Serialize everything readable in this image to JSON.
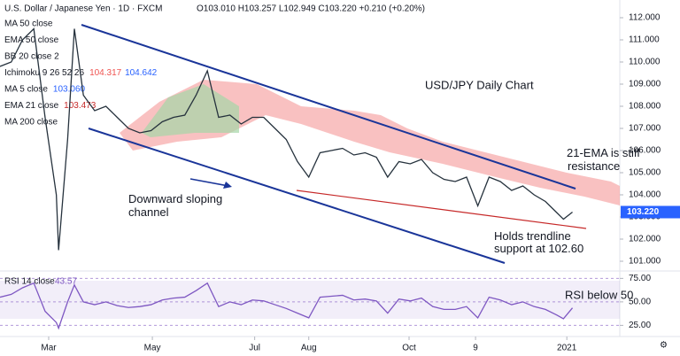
{
  "header": {
    "symbol": "U.S. Dollar / Japanese Yen · 1D · FXCM",
    "ohlc": "O103.010 H103.257 L102.949 C103.220 +0.210 (+0.20%)"
  },
  "indicators": [
    {
      "name": "MA 50 close"
    },
    {
      "name": "EMA 50 close"
    },
    {
      "name": "BB 20 close 2"
    },
    {
      "name": "Ichimoku 9 26 52 26",
      "values": [
        "104.317",
        "104.642"
      ]
    },
    {
      "name": "MA 5 close",
      "values": [
        "103.060"
      ]
    },
    {
      "name": "EMA 21 close",
      "values": [
        "103.473"
      ]
    },
    {
      "name": "MA 200 close"
    }
  ],
  "chart_data": [
    {
      "type": "line",
      "title": "USD/JPY Daily Chart",
      "annotations": [
        "21-EMA is stiff resistance",
        "Downward sloping channel",
        "Holds trendline support at 102.60"
      ],
      "x": [
        0,
        5,
        10,
        15,
        20,
        25,
        26,
        30,
        33,
        37,
        42,
        47,
        52,
        57,
        62,
        67,
        72,
        77,
        82,
        87,
        92,
        97,
        102,
        107,
        112,
        117,
        122,
        127,
        132,
        137,
        142,
        147,
        152,
        157,
        162,
        167,
        172,
        177,
        182,
        187,
        192,
        197,
        202,
        207,
        212,
        217,
        222,
        227,
        232,
        237,
        242,
        247,
        250,
        254
      ],
      "values": [
        109.8,
        110,
        111,
        111.5,
        107.5,
        104,
        101.5,
        106.5,
        111.5,
        108.5,
        107.8,
        108,
        107.5,
        107,
        106.8,
        106.9,
        107.3,
        107.5,
        107.6,
        108.5,
        109.6,
        107.5,
        107.6,
        107.2,
        107.5,
        107.5,
        107,
        106.5,
        105.5,
        104.8,
        105.9,
        106,
        106.1,
        105.8,
        105.9,
        105.7,
        104.8,
        105.5,
        105.4,
        105.6,
        105,
        104.7,
        104.6,
        104.8,
        103.5,
        104.8,
        104.6,
        104.2,
        104.4,
        104,
        103.7,
        103.2,
        102.9,
        103.22
      ],
      "color": "#26323d",
      "xlim": [
        0,
        275
      ],
      "ylim": [
        100.6,
        112.8
      ],
      "xticks": [
        {
          "value": 21.6,
          "label": "Mar"
        },
        {
          "value": 67.6,
          "label": "May"
        },
        {
          "value": 113,
          "label": "Jul"
        },
        {
          "value": 137,
          "label": "Aug"
        },
        {
          "value": 181.5,
          "label": "Oct"
        },
        {
          "value": 211,
          "label": "9"
        },
        {
          "value": 251.5,
          "label": "2021"
        }
      ],
      "yticks": [
        {
          "value": 101,
          "label": "101.000"
        },
        {
          "value": 102,
          "label": "102.000"
        },
        {
          "value": 103,
          "label": "103.000"
        },
        {
          "value": 104,
          "label": "104.000"
        },
        {
          "value": 105,
          "label": "105.000"
        },
        {
          "value": 106,
          "label": "106.000"
        },
        {
          "value": 107,
          "label": "107.000"
        },
        {
          "value": 108,
          "label": "108.000"
        },
        {
          "value": 109,
          "label": "109.000"
        },
        {
          "value": 110,
          "label": "110.000"
        },
        {
          "value": 111,
          "label": "111.000"
        },
        {
          "value": 112,
          "label": "112.000"
        }
      ],
      "last_price": {
        "value": 103.22,
        "label": "103.220"
      }
    },
    {
      "type": "line",
      "legend": "RSI 14 close",
      "legend_value": 43.57,
      "annotation": "RSI below 50",
      "x": [
        0,
        5,
        10,
        15,
        20,
        25,
        26,
        30,
        33,
        37,
        42,
        47,
        52,
        57,
        62,
        67,
        72,
        77,
        82,
        87,
        92,
        97,
        102,
        107,
        112,
        117,
        122,
        127,
        132,
        137,
        142,
        147,
        152,
        157,
        162,
        167,
        172,
        177,
        182,
        187,
        192,
        197,
        202,
        207,
        212,
        217,
        222,
        227,
        232,
        237,
        242,
        247,
        250,
        254
      ],
      "values": [
        55,
        58,
        65,
        70,
        40,
        28,
        22,
        50,
        68,
        50,
        47,
        50,
        46,
        44,
        45,
        47,
        52,
        54,
        55,
        62,
        70,
        45,
        50,
        47,
        52,
        51,
        47,
        43,
        38,
        33,
        55,
        56,
        57,
        52,
        53,
        51,
        38,
        53,
        51,
        54,
        45,
        42,
        42,
        45,
        33,
        55,
        52,
        47,
        50,
        45,
        42,
        36,
        32,
        43.57
      ],
      "color": "#7e57c2",
      "xlim": [
        0,
        275
      ],
      "ylim": [
        15,
        81
      ],
      "yticks": [
        {
          "value": 25,
          "label": "25.00"
        },
        {
          "value": 50,
          "label": "50.00"
        },
        {
          "value": 75,
          "label": "75.00"
        }
      ]
    }
  ]
}
